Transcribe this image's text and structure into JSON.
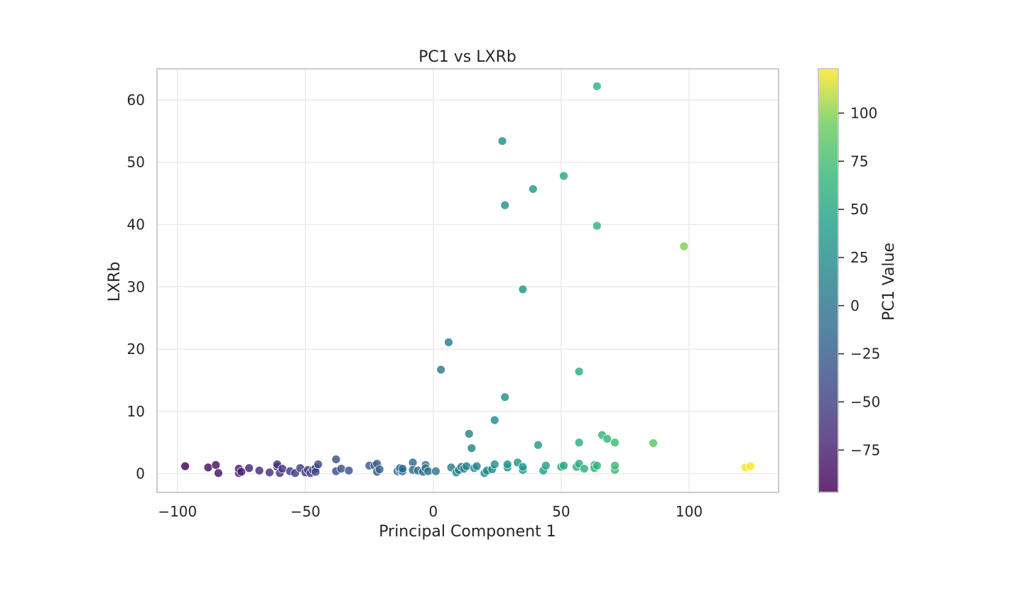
{
  "chart_data": {
    "type": "scatter",
    "title": "PC1 vs LXRb",
    "xlabel": "Principal Component 1",
    "ylabel": "LXRb",
    "xlim": [
      -108,
      135
    ],
    "ylim": [
      -3,
      65
    ],
    "xticks": [
      -100,
      -50,
      0,
      50,
      100
    ],
    "xtick_labels": [
      "−100",
      "−50",
      "0",
      "50",
      "100"
    ],
    "yticks": [
      0,
      10,
      20,
      30,
      40,
      50,
      60
    ],
    "ytick_labels": [
      "0",
      "10",
      "20",
      "30",
      "40",
      "50",
      "60"
    ],
    "grid": true,
    "colorbar": {
      "label": "PC1 Value",
      "colormap": "viridis",
      "range": [
        -97,
        123
      ],
      "ticks": [
        -75,
        -50,
        -25,
        0,
        25,
        50,
        75,
        100
      ],
      "tick_labels": [
        "−75",
        "−50",
        "−25",
        "0",
        "25",
        "50",
        "75",
        "100"
      ]
    },
    "points": [
      [
        -97,
        1.2
      ],
      [
        -88,
        1.0
      ],
      [
        -85,
        1.4
      ],
      [
        -84,
        0.1
      ],
      [
        -76,
        0.1
      ],
      [
        -76,
        0.8
      ],
      [
        -75,
        0.3
      ],
      [
        -72,
        0.9
      ],
      [
        -68,
        0.5
      ],
      [
        -64,
        0.2
      ],
      [
        -61,
        1.1
      ],
      [
        -61,
        1.5
      ],
      [
        -60,
        0.1
      ],
      [
        -59,
        0.8
      ],
      [
        -56,
        0.4
      ],
      [
        -54,
        0.1
      ],
      [
        -52,
        0.9
      ],
      [
        -50,
        0.2
      ],
      [
        -49,
        0.6
      ],
      [
        -48,
        0.1
      ],
      [
        -47,
        0.6
      ],
      [
        -46,
        0.9
      ],
      [
        -46,
        0.3
      ],
      [
        -45,
        1.5
      ],
      [
        -38,
        2.3
      ],
      [
        -38,
        0.4
      ],
      [
        -36,
        0.8
      ],
      [
        -33,
        0.5
      ],
      [
        -25,
        1.3
      ],
      [
        -23,
        1.3
      ],
      [
        -22,
        0.3
      ],
      [
        -22,
        1.6
      ],
      [
        -21,
        0.7
      ],
      [
        -14,
        0.4
      ],
      [
        -13,
        0.6
      ],
      [
        -13,
        0.9
      ],
      [
        -12,
        0.4
      ],
      [
        -12,
        0.8
      ],
      [
        -8,
        1.8
      ],
      [
        -8,
        0.6
      ],
      [
        -6,
        0.5
      ],
      [
        -4,
        0.3
      ],
      [
        -3,
        1.4
      ],
      [
        -3,
        0.9
      ],
      [
        -2,
        0.4
      ],
      [
        1,
        0.4
      ],
      [
        3,
        16.7
      ],
      [
        6,
        21.1
      ],
      [
        7,
        1.0
      ],
      [
        9,
        0.2
      ],
      [
        10,
        0.6
      ],
      [
        11,
        1.1
      ],
      [
        12,
        0.8
      ],
      [
        13,
        1.2
      ],
      [
        14,
        6.4
      ],
      [
        15,
        4.1
      ],
      [
        16,
        0.9
      ],
      [
        17,
        1.2
      ],
      [
        20,
        0.1
      ],
      [
        21,
        0.5
      ],
      [
        23,
        0.7
      ],
      [
        24,
        1.5
      ],
      [
        24,
        8.6
      ],
      [
        27,
        53.4
      ],
      [
        28,
        12.3
      ],
      [
        28,
        43.1
      ],
      [
        29,
        1.0
      ],
      [
        29,
        1.5
      ],
      [
        33,
        1.8
      ],
      [
        35,
        0.6
      ],
      [
        35,
        1.1
      ],
      [
        35,
        29.6
      ],
      [
        39,
        45.7
      ],
      [
        41,
        4.6
      ],
      [
        43,
        0.5
      ],
      [
        44,
        1.3
      ],
      [
        50,
        1.1
      ],
      [
        51,
        47.8
      ],
      [
        51,
        1.3
      ],
      [
        56,
        1.1
      ],
      [
        57,
        1.6
      ],
      [
        57,
        16.4
      ],
      [
        57,
        5.0
      ],
      [
        59,
        0.8
      ],
      [
        63,
        1.4
      ],
      [
        63,
        0.9
      ],
      [
        64,
        62.2
      ],
      [
        64,
        1.3
      ],
      [
        64,
        39.8
      ],
      [
        66,
        6.2
      ],
      [
        68,
        5.6
      ],
      [
        71,
        5.0
      ],
      [
        71,
        0.6
      ],
      [
        71,
        1.3
      ],
      [
        86,
        4.9
      ],
      [
        98,
        36.5
      ],
      [
        122,
        1.0
      ],
      [
        124,
        1.2
      ]
    ]
  }
}
